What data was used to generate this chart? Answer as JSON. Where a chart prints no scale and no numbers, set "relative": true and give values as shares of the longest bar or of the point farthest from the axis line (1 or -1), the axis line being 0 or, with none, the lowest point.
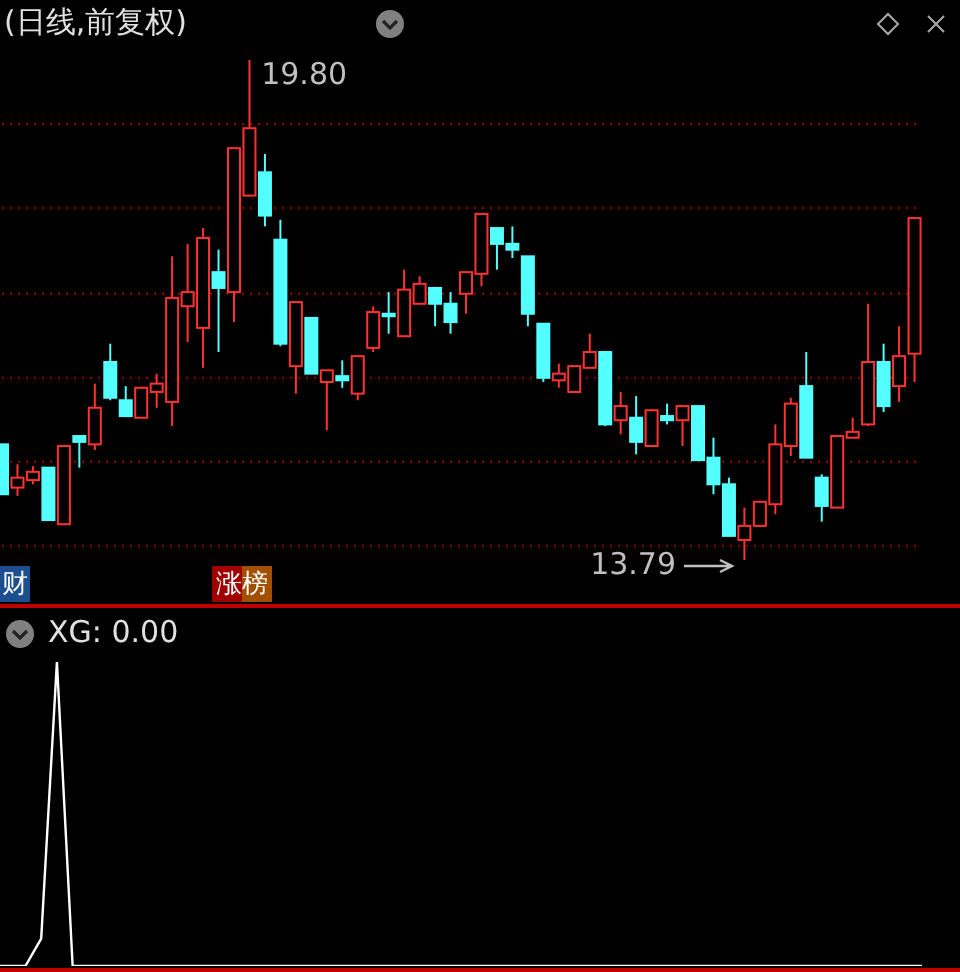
{
  "chart_data": [
    {
      "type": "candlestick",
      "title": "(日线,前复权)",
      "categories": [
        null,
        null,
        null,
        null,
        null,
        null,
        null,
        null,
        null,
        null,
        null,
        null,
        null,
        null,
        null,
        null,
        null,
        null,
        null,
        null,
        null,
        null,
        null,
        null,
        null,
        null,
        null,
        null,
        null,
        null,
        null,
        null,
        null,
        null,
        null,
        null,
        null,
        null,
        null,
        null,
        null,
        null,
        null,
        null,
        null,
        null,
        null,
        null,
        null,
        null,
        null,
        null,
        null,
        null,
        null,
        null,
        null,
        null,
        null,
        null
      ],
      "ohlc": [
        [
          15.18,
          15.18,
          14.58,
          14.58
        ],
        [
          14.66,
          14.94,
          14.56,
          14.78
        ],
        [
          14.75,
          14.92,
          14.7,
          14.85
        ],
        [
          14.9,
          14.9,
          14.27,
          14.27
        ],
        [
          14.22,
          15.16,
          14.22,
          15.16
        ],
        [
          15.28,
          15.28,
          14.9,
          15.21
        ],
        [
          15.18,
          15.91,
          15.11,
          15.62
        ],
        [
          16.17,
          16.39,
          15.71,
          15.74
        ],
        [
          15.71,
          15.88,
          15.52,
          15.52
        ],
        [
          15.5,
          15.86,
          15.5,
          15.86
        ],
        [
          15.81,
          16.03,
          15.62,
          15.91
        ],
        [
          15.69,
          17.44,
          15.4,
          16.94
        ],
        [
          16.84,
          17.59,
          16.41,
          17.01
        ],
        [
          16.58,
          17.78,
          16.1,
          17.66
        ],
        [
          17.25,
          17.52,
          16.29,
          17.06
        ],
        [
          17.01,
          18.74,
          16.65,
          18.74
        ],
        [
          18.17,
          19.8,
          18.17,
          18.98
        ],
        [
          18.45,
          18.67,
          17.8,
          17.93
        ],
        [
          17.64,
          17.88,
          16.36,
          16.39
        ],
        [
          16.12,
          16.89,
          15.79,
          16.89
        ],
        [
          16.7,
          16.7,
          16.03,
          16.03
        ],
        [
          15.93,
          16.07,
          15.35,
          16.07
        ],
        [
          16.0,
          16.19,
          15.86,
          15.95
        ],
        [
          15.79,
          16.24,
          15.71,
          16.24
        ],
        [
          16.34,
          16.84,
          16.29,
          16.77
        ],
        [
          16.75,
          17.01,
          16.51,
          16.72
        ],
        [
          16.48,
          17.28,
          16.48,
          17.04
        ],
        [
          16.87,
          17.2,
          16.87,
          17.11
        ],
        [
          17.06,
          17.06,
          16.6,
          16.87
        ],
        [
          16.87,
          17.01,
          16.51,
          16.65
        ],
        [
          16.99,
          17.25,
          16.75,
          17.25
        ],
        [
          17.23,
          17.95,
          17.08,
          17.95
        ],
        [
          17.78,
          17.78,
          17.28,
          17.59
        ],
        [
          17.59,
          17.8,
          17.42,
          17.52
        ],
        [
          17.44,
          17.44,
          16.6,
          16.75
        ],
        [
          16.63,
          16.63,
          15.93,
          15.98
        ],
        [
          15.95,
          16.15,
          15.86,
          16.03
        ],
        [
          15.81,
          16.12,
          15.81,
          16.12
        ],
        [
          16.1,
          16.51,
          16.1,
          16.29
        ],
        [
          16.29,
          16.29,
          15.4,
          15.42
        ],
        [
          15.47,
          15.81,
          15.3,
          15.64
        ],
        [
          15.5,
          15.76,
          15.06,
          15.21
        ],
        [
          15.16,
          15.59,
          15.16,
          15.59
        ],
        [
          15.52,
          15.67,
          15.42,
          15.47
        ],
        [
          15.47,
          15.64,
          15.16,
          15.64
        ],
        [
          15.64,
          15.64,
          14.99,
          14.99
        ],
        [
          15.02,
          15.26,
          14.58,
          14.7
        ],
        [
          14.7,
          14.78,
          14.08,
          14.08
        ],
        [
          14.03,
          14.42,
          13.79,
          14.2
        ],
        [
          14.2,
          14.49,
          14.2,
          14.49
        ],
        [
          14.46,
          15.42,
          14.34,
          15.18
        ],
        [
          15.16,
          15.74,
          15.04,
          15.67
        ],
        [
          15.88,
          16.29,
          15.02,
          15.02
        ],
        [
          14.78,
          14.82,
          14.25,
          14.44
        ],
        [
          14.42,
          15.28,
          14.42,
          15.28
        ],
        [
          15.26,
          15.5,
          15.26,
          15.33
        ],
        [
          15.42,
          16.87,
          15.4,
          16.17
        ],
        [
          16.17,
          16.39,
          15.57,
          15.64
        ],
        [
          15.88,
          16.6,
          15.69,
          16.24
        ],
        [
          16.27,
          17.9,
          15.93,
          17.9
        ]
      ],
      "colors": [
        "#54ffff",
        "#ff3232",
        "#ff3232",
        "#54ffff",
        "#ff3232",
        "#54ffff",
        "#ff3232",
        "#54ffff",
        "#54ffff",
        "#ff3232",
        "#ff3232",
        "#ff3232",
        "#ff3232",
        "#ff3232",
        "#54ffff",
        "#ff3232",
        "#ff3232",
        "#54ffff",
        "#54ffff",
        "#ff3232",
        "#54ffff",
        "#ff3232",
        "#54ffff",
        "#ff3232",
        "#ff3232",
        "#54ffff",
        "#ff3232",
        "#ff3232",
        "#54ffff",
        "#54ffff",
        "#ff3232",
        "#ff3232",
        "#54ffff",
        "#54ffff",
        "#54ffff",
        "#54ffff",
        "#ff3232",
        "#ff3232",
        "#ff3232",
        "#54ffff",
        "#ff3232",
        "#54ffff",
        "#ff3232",
        "#54ffff",
        "#ff3232",
        "#54ffff",
        "#54ffff",
        "#54ffff",
        "#ff3232",
        "#ff3232",
        "#ff3232",
        "#ff3232",
        "#54ffff",
        "#54ffff",
        "#ff3232",
        "#ff3232",
        "#ff3232",
        "#54ffff",
        "#ff3232",
        "#ff3232"
      ],
      "yticks": [
        {
          "value": 13.96,
          "label": null
        },
        {
          "value": 14.97,
          "label": null
        },
        {
          "value": 15.98,
          "label": null
        },
        {
          "value": 16.99,
          "label": null
        },
        {
          "value": 18.02,
          "label": null
        },
        {
          "value": 19.03,
          "label": null
        }
      ],
      "grid": "y",
      "annotations": [
        "19.80",
        "13.79",
        "财",
        "涨榜"
      ]
    },
    {
      "type": "line",
      "title": "XG: 0.00",
      "relative": true,
      "categories": [
        null,
        null,
        null,
        null,
        null,
        null,
        null,
        null,
        null,
        null,
        null,
        null,
        null,
        null,
        null,
        null,
        null,
        null,
        null,
        null,
        null,
        null,
        null,
        null,
        null,
        null,
        null,
        null,
        null,
        null,
        null,
        null,
        null,
        null,
        null,
        null,
        null,
        null,
        null,
        null,
        null,
        null,
        null,
        null,
        null,
        null,
        null,
        null,
        null,
        null,
        null,
        null,
        null,
        null,
        null,
        null,
        null,
        null,
        null,
        null
      ],
      "series": [
        {
          "color": "#ffffff",
          "values": [
            0,
            0,
            0,
            0.09,
            1,
            0,
            0,
            0,
            0,
            0,
            0,
            0,
            0,
            0,
            0,
            0,
            0,
            0,
            0,
            0,
            0,
            0,
            0,
            0,
            0,
            0,
            0,
            0,
            0,
            0,
            0,
            0,
            0,
            0,
            0,
            0,
            0,
            0,
            0,
            0,
            0,
            0,
            0,
            0,
            0,
            0,
            0,
            0,
            0,
            0,
            0,
            0,
            0,
            0,
            0,
            0,
            0,
            0,
            0,
            0
          ]
        }
      ]
    }
  ]
}
